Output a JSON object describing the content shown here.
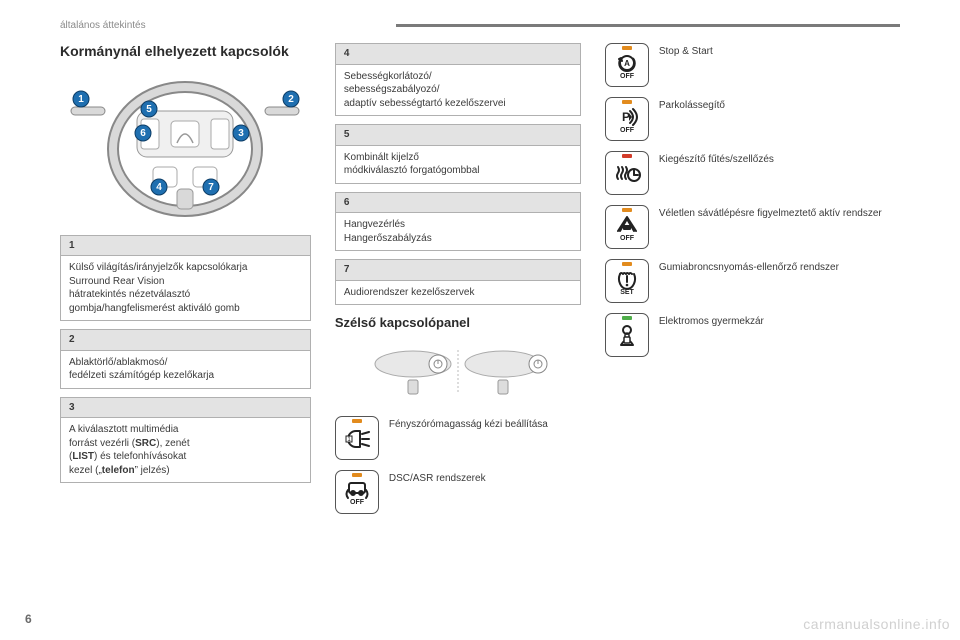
{
  "page": {
    "section_label": "általános áttekintés",
    "page_number": "6",
    "watermark": "carmanualsonline.info"
  },
  "colors": {
    "led_orange": "#e28b1e",
    "led_red": "#d23c2a",
    "led_green": "#4fae4a",
    "marker_blue": "#1f6fb0",
    "marker_border": "#0d3d66",
    "box_border": "#b0b0b0",
    "box_header_bg": "#e3e3e3",
    "icon_stroke": "#222222",
    "text": "#3a3a3a",
    "muted": "#8a8a8a",
    "topline": "#7a7a7a",
    "wheel_fill": "#d9d9d9",
    "wheel_stroke": "#888888"
  },
  "col1": {
    "heading": "Kormánynál elhelyezett kapcsolók",
    "wheel_markers": [
      "1",
      "2",
      "3",
      "4",
      "5",
      "6",
      "7"
    ],
    "boxes": [
      {
        "num": "1",
        "lines": [
          "Külső világítás/irányjelzők kapcsolókarja",
          "Surround Rear Vision",
          "hátratekintés nézetválasztó",
          "gombja/hangfelismerést aktiváló gomb"
        ]
      },
      {
        "num": "2",
        "lines": [
          "Ablaktörlő/ablakmosó/",
          "fedélzeti számítógép kezelőkarja"
        ]
      },
      {
        "num": "3",
        "lines": [
          "A kiválasztott multimédia",
          "forrást vezérli (<b>SRC</b>), zenét",
          "(<b>LIST</b>) és telefonhívásokat",
          "kezel („<b>telefon</b>” jelzés)"
        ]
      }
    ]
  },
  "col2": {
    "boxes": [
      {
        "num": "4",
        "lines": [
          "Sebességkorlátozó/",
          "sebességszabályozó/",
          "adaptív sebességtartó kezelőszervei"
        ]
      },
      {
        "num": "5",
        "lines": [
          "Kombinált kijelző",
          " módkiválasztó forgatógombbal"
        ]
      },
      {
        "num": "6",
        "lines": [
          "Hangvezérlés",
          "Hangerőszabályzás"
        ]
      },
      {
        "num": "7",
        "lines": [
          "Audiorendszer kezelőszervek"
        ]
      }
    ],
    "subheading": "Szélső kapcsolópanel",
    "items": [
      {
        "icon": "headlight-adjust",
        "led": "orange",
        "label": "Fényszórómagasság kézi beállítása"
      },
      {
        "icon": "dsc-asr",
        "led": "orange",
        "label": "DSC/ASR rendszerek"
      }
    ]
  },
  "col3": {
    "items": [
      {
        "icon": "stop-start",
        "led": "orange",
        "label": "Stop & Start"
      },
      {
        "icon": "park-assist",
        "led": "orange",
        "label": "Parkolássegítő"
      },
      {
        "icon": "aux-heating",
        "led": "red",
        "label": "Kiegészítő fűtés/szellőzés"
      },
      {
        "icon": "lane-departure",
        "led": "orange",
        "label": "Véletlen sávátlépésre figyelmeztető aktív rendszer"
      },
      {
        "icon": "tpms",
        "led": "orange",
        "label": "Gumiabroncsnyomás-ellenőrző rendszer"
      },
      {
        "icon": "child-lock",
        "led": "green",
        "label": "Elektromos gyermekzár"
      }
    ]
  },
  "typography": {
    "heading_fontsize_pt": 11,
    "body_fontsize_pt": 7.5,
    "subheading_fontsize_pt": 10
  }
}
